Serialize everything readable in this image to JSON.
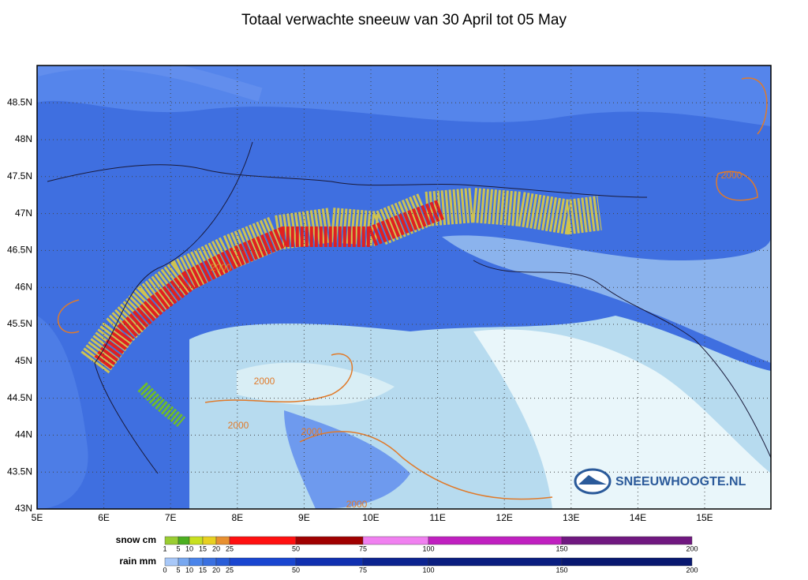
{
  "title": "Totaal verwachte sneeuw van 30 April tot 05 May",
  "map": {
    "x_labels": [
      "5E",
      "6E",
      "7E",
      "8E",
      "9E",
      "10E",
      "11E",
      "12E",
      "13E",
      "14E",
      "15E"
    ],
    "y_labels": [
      "48.5N",
      "48N",
      "47.5N",
      "47N",
      "46.5N",
      "46N",
      "45.5N",
      "45N",
      "44.5N",
      "44N",
      "43.5N",
      "43N"
    ],
    "contour_labels": [
      "2000",
      "2000",
      "2000",
      "2000",
      "2000",
      "2000"
    ],
    "logo": "SNEEUWHOOGTE.NL"
  },
  "legend": {
    "snow": {
      "label": "snow cm",
      "ticks": [
        "1",
        "5",
        "10",
        "15",
        "20",
        "25",
        "50",
        "75",
        "100",
        "150",
        "200"
      ]
    },
    "rain": {
      "label": "rain mm",
      "ticks": [
        "0",
        "5",
        "10",
        "15",
        "20",
        "25",
        "50",
        "75",
        "100",
        "150",
        "200"
      ]
    }
  }
}
